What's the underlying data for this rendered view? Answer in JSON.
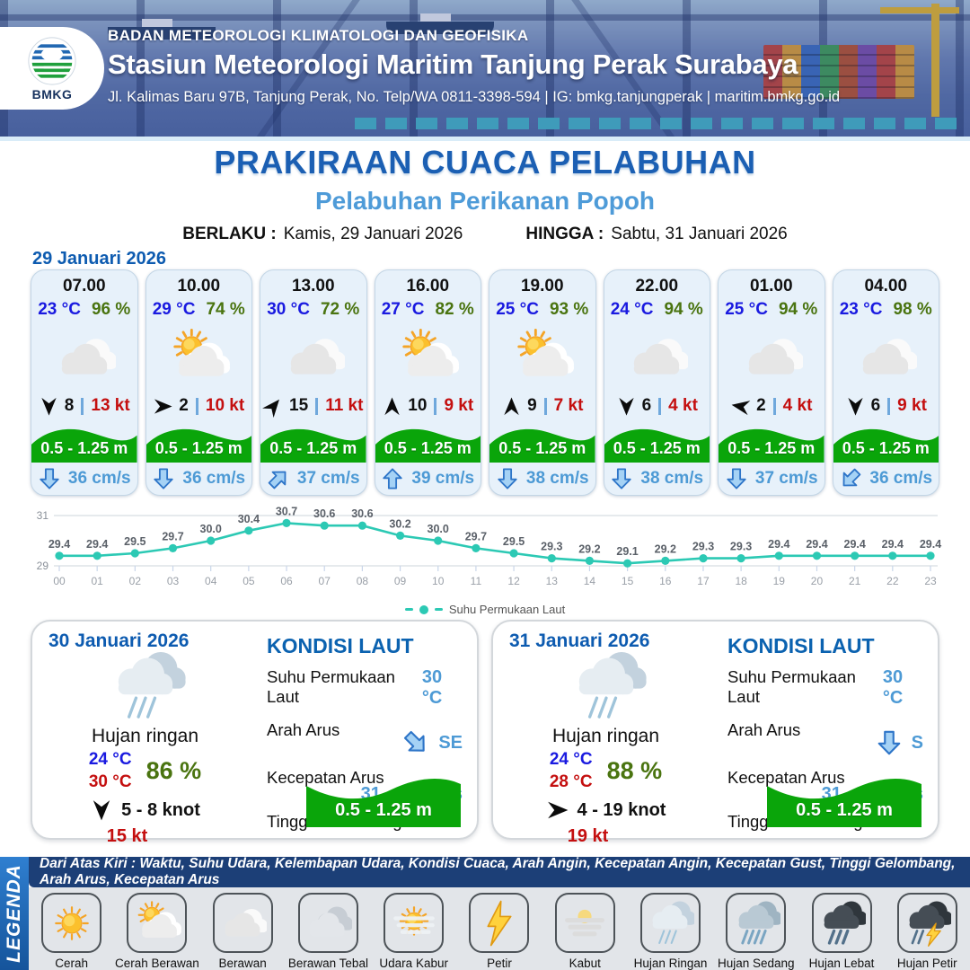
{
  "header": {
    "logo": "BMKG",
    "agency": "BADAN METEOROLOGI KLIMATOLOGI DAN GEOFISIKA",
    "station": "Stasiun Meteorologi Maritim Tanjung Perak Surabaya",
    "address": "Jl. Kalimas Baru 97B, Tanjung Perak, No. Telp/WA 0811-3398-594 | IG: bmkg.tanjungperak | maritim.bmkg.go.id"
  },
  "title": {
    "main": "PRAKIRAAN CUACA PELABUHAN",
    "sub": "Pelabuhan Perikanan Popoh"
  },
  "validity": {
    "berlaku_label": "BERLAKU :",
    "berlaku_value": "Kamis, 29 Januari 2026",
    "hingga_label": "HINGGA :",
    "hingga_value": "Sabtu, 31 Januari 2026"
  },
  "forecast_date": "29 Januari 2026",
  "forecast_cards": [
    {
      "time": "07.00",
      "temp": "23 °C",
      "humidity": "96 %",
      "icon": "berawan",
      "wind_dir_deg": 180,
      "wind_speed": "8",
      "gust": "13 kt",
      "wave": "0.5 - 1.25 m",
      "current_dir_deg": 180,
      "current": "36 cm/s"
    },
    {
      "time": "10.00",
      "temp": "29 °C",
      "humidity": "74 %",
      "icon": "cerah-berawan",
      "wind_dir_deg": 90,
      "wind_speed": "2",
      "gust": "10 kt",
      "wave": "0.5 - 1.25 m",
      "current_dir_deg": 180,
      "current": "36 cm/s"
    },
    {
      "time": "13.00",
      "temp": "30 °C",
      "humidity": "72 %",
      "icon": "berawan",
      "wind_dir_deg": 40,
      "wind_speed": "15",
      "gust": "11 kt",
      "wave": "0.5 - 1.25 m",
      "current_dir_deg": 45,
      "current": "37 cm/s"
    },
    {
      "time": "16.00",
      "temp": "27 °C",
      "humidity": "82 %",
      "icon": "cerah-berawan",
      "wind_dir_deg": 0,
      "wind_speed": "10",
      "gust": "9 kt",
      "wave": "0.5 - 1.25 m",
      "current_dir_deg": 0,
      "current": "39 cm/s"
    },
    {
      "time": "19.00",
      "temp": "25 °C",
      "humidity": "93 %",
      "icon": "cerah-berawan",
      "wind_dir_deg": 0,
      "wind_speed": "9",
      "gust": "7 kt",
      "wave": "0.5 - 1.25 m",
      "current_dir_deg": 180,
      "current": "38 cm/s"
    },
    {
      "time": "22.00",
      "temp": "24 °C",
      "humidity": "94 %",
      "icon": "berawan",
      "wind_dir_deg": 180,
      "wind_speed": "6",
      "gust": "4 kt",
      "wave": "0.5 - 1.25 m",
      "current_dir_deg": 180,
      "current": "38 cm/s"
    },
    {
      "time": "01.00",
      "temp": "25 °C",
      "humidity": "94 %",
      "icon": "berawan",
      "wind_dir_deg": 280,
      "wind_speed": "2",
      "gust": "4 kt",
      "wave": "0.5 - 1.25 m",
      "current_dir_deg": 180,
      "current": "37 cm/s"
    },
    {
      "time": "04.00",
      "temp": "23 °C",
      "humidity": "98 %",
      "icon": "berawan",
      "wind_dir_deg": 180,
      "wind_speed": "6",
      "gust": "9 kt",
      "wave": "0.5 - 1.25 m",
      "current_dir_deg": 225,
      "current": "36 cm/s"
    }
  ],
  "chart_data": {
    "type": "line",
    "x": [
      "00",
      "01",
      "02",
      "03",
      "04",
      "05",
      "06",
      "07",
      "08",
      "09",
      "10",
      "11",
      "12",
      "13",
      "14",
      "15",
      "16",
      "17",
      "18",
      "19",
      "20",
      "21",
      "22",
      "23"
    ],
    "series": [
      {
        "name": "Suhu Permukaan Laut",
        "values": [
          29.4,
          29.4,
          29.5,
          29.7,
          30.0,
          30.4,
          30.7,
          30.6,
          30.6,
          30.2,
          30.0,
          29.7,
          29.5,
          29.3,
          29.2,
          29.1,
          29.2,
          29.3,
          29.3,
          29.4,
          29.4,
          29.4,
          29.4,
          29.4
        ]
      }
    ],
    "ylim": [
      29,
      31
    ],
    "yticks": [
      29,
      31
    ],
    "line_color": "#2cc9b4",
    "grid": true,
    "legend_position": "bottom"
  },
  "daily_cards": [
    {
      "date": "30 Januari 2026",
      "icon": "hujan-ringan",
      "condition": "Hujan ringan",
      "temp_min": "24 °C",
      "temp_max": "30 °C",
      "humidity": "86 %",
      "wind_dir_deg": 180,
      "wind": "5  - 8 knot",
      "gust": "15 kt",
      "sea": {
        "title": "KONDISI LAUT",
        "sst_label": "Suhu Permukaan Laut",
        "sst": "30 °C",
        "dir_label": "Arah Arus",
        "dir": "SE",
        "dir_deg": 135,
        "speed_label": "Kecepatan Arus",
        "speed": "31  - 38 cm/s",
        "wave_label": "Tinggi Gelombang",
        "wave": "0.5 - 1.25 m"
      }
    },
    {
      "date": "31 Januari 2026",
      "icon": "hujan-ringan",
      "condition": "Hujan ringan",
      "temp_min": "24 °C",
      "temp_max": "28 °C",
      "humidity": "88 %",
      "wind_dir_deg": 90,
      "wind": "4  - 19 knot",
      "gust": "19 kt",
      "sea": {
        "title": "KONDISI LAUT",
        "sst_label": "Suhu Permukaan Laut",
        "sst": "30 °C",
        "dir_label": "Arah Arus",
        "dir": "S",
        "dir_deg": 180,
        "speed_label": "Kecepatan Arus",
        "speed": "31 - 42 cm/s",
        "wave_label": "Tinggi Gelombang",
        "wave": "0.5 - 1.25 m"
      }
    }
  ],
  "legend": {
    "tab": "LEGENDA",
    "description": "Dari Atas Kiri : Waktu, Suhu Udara, Kelembapan Udara, Kondisi Cuaca, Arah Angin, Kecepatan Angin, Kecepatan Gust, Tinggi Gelombang, Arah Arus, Kecepatan Arus",
    "items": [
      {
        "label": "Cerah",
        "icon": "cerah"
      },
      {
        "label": "Cerah Berawan",
        "icon": "cerah-berawan"
      },
      {
        "label": "Berawan",
        "icon": "berawan"
      },
      {
        "label": "Berawan Tebal",
        "icon": "berawan-tebal"
      },
      {
        "label": "Udara Kabur",
        "icon": "udara-kabur"
      },
      {
        "label": "Petir",
        "icon": "petir"
      },
      {
        "label": "Kabut",
        "icon": "kabut"
      },
      {
        "label": "Hujan Ringan",
        "icon": "hujan-ringan"
      },
      {
        "label": "Hujan Sedang",
        "icon": "hujan-sedang"
      },
      {
        "label": "Hujan Lebat",
        "icon": "hujan-lebat"
      },
      {
        "label": "Hujan Petir",
        "icon": "hujan-petir"
      }
    ]
  },
  "colors": {
    "heading_blue": "#1b5fb3",
    "subtitle_blue": "#4e9bd8",
    "temp_blue": "#1a1ae0",
    "humidity_green": "#4a7410",
    "gust_red": "#c40f0f",
    "wave_green": "#0aa50a",
    "current_blue": "#4d9ad5",
    "chart_teal": "#2cc9b4",
    "legend_navy": "#1c3f77",
    "legenda_tab_blue": "#1f6fc4"
  },
  "_icons": {
    "wind_dart": "wind-dart",
    "current_arrow": "current-arrow"
  }
}
